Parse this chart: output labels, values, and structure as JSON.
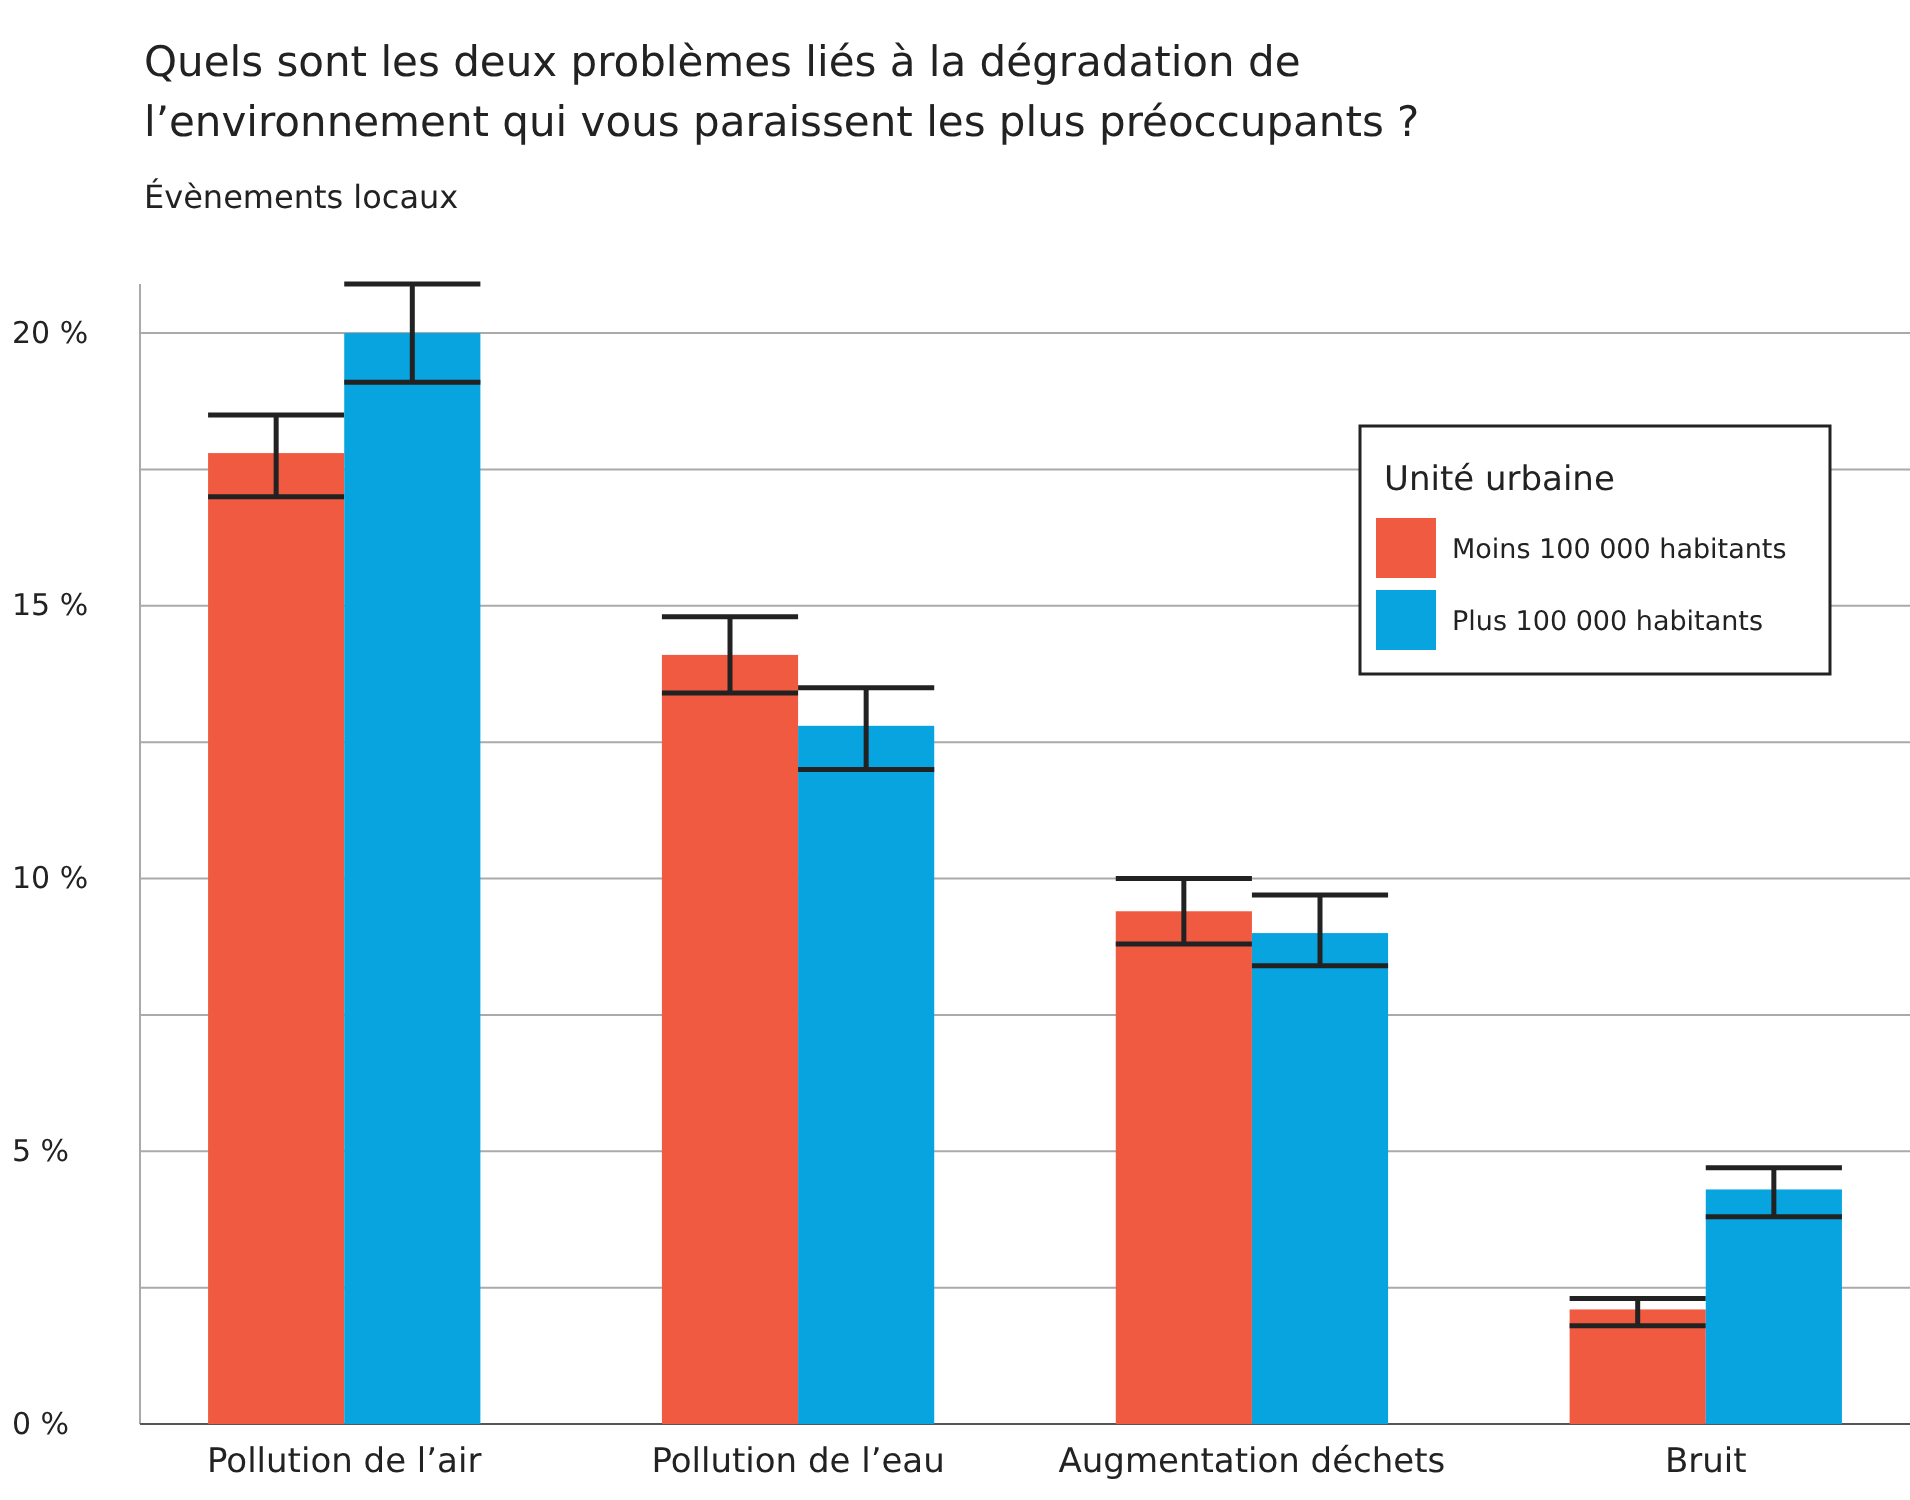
{
  "chart_data": {
    "type": "bar",
    "title": "Quels sont les deux problèmes liés à la dégradation de l’environnement qui vous paraissent les plus préoccupants ?",
    "subtitle": "Évènements locaux",
    "legend_title": "Unité urbaine",
    "categories": [
      "Pollution de l’air",
      "Pollution de l’eau",
      "Augmentation déchets",
      "Bruit"
    ],
    "series": [
      {
        "name": "Moins 100 000 habitants",
        "color": "#ef5a40",
        "values": [
          17.8,
          14.1,
          9.4,
          2.1
        ],
        "errors": [
          [
            17.0,
            18.5
          ],
          [
            13.4,
            14.8
          ],
          [
            8.8,
            10.0
          ],
          [
            1.8,
            2.3
          ]
        ]
      },
      {
        "name": "Plus 100 000 habitants",
        "color": "#08a4df",
        "values": [
          20.0,
          12.8,
          9.0,
          4.3
        ],
        "errors": [
          [
            19.1,
            20.9
          ],
          [
            12.0,
            13.5
          ],
          [
            8.4,
            9.7
          ],
          [
            3.8,
            4.7
          ]
        ]
      }
    ],
    "ylim": [
      0,
      20.9
    ],
    "yticks": [
      {
        "value": 0,
        "label": "0 %"
      },
      {
        "value": 2.5,
        "label": null
      },
      {
        "value": 5,
        "label": "5 %"
      },
      {
        "value": 7.5,
        "label": null
      },
      {
        "value": 10,
        "label": "10 %"
      },
      {
        "value": 12.5,
        "label": null
      },
      {
        "value": 15,
        "label": "15 %"
      },
      {
        "value": 17.5,
        "label": null
      },
      {
        "value": 20,
        "label": "20 %"
      }
    ],
    "grid": "y",
    "legend": "top right"
  }
}
